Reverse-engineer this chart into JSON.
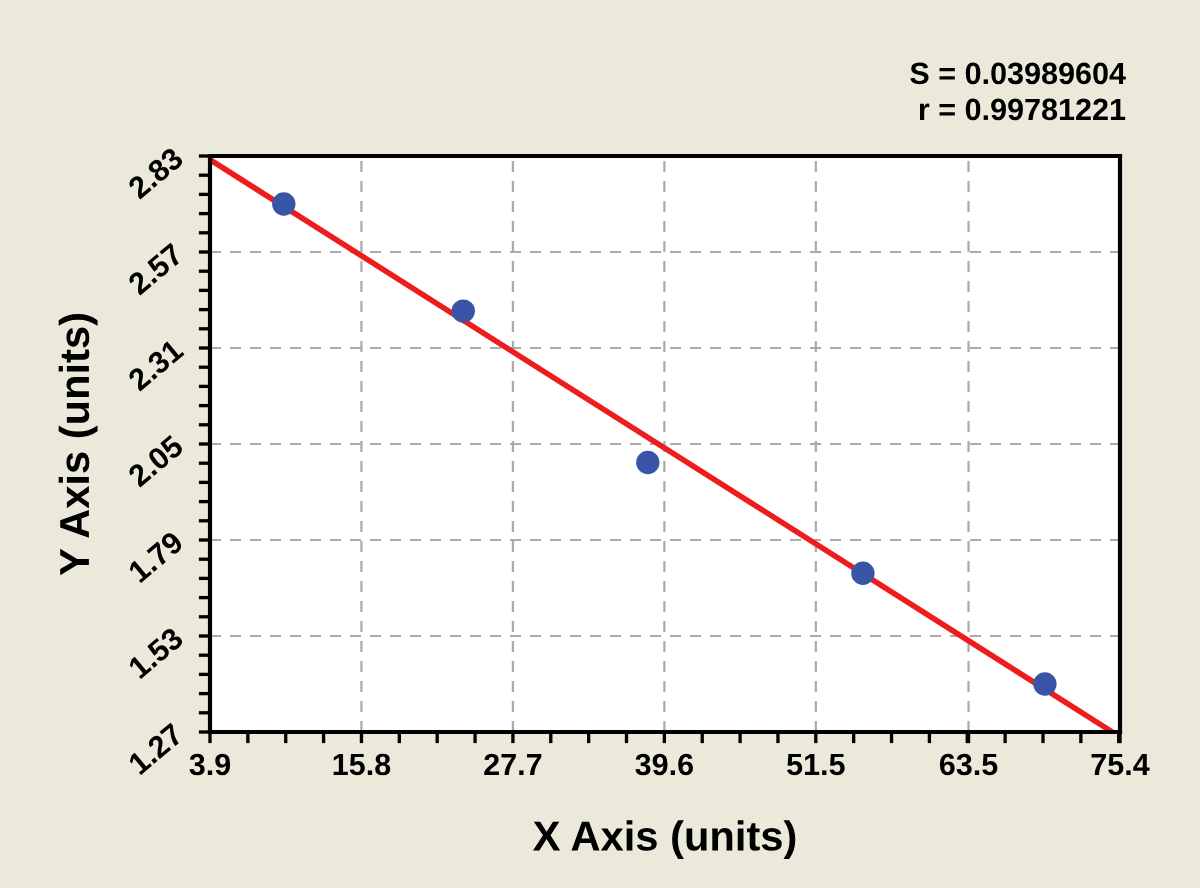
{
  "chart_data": {
    "type": "scatter",
    "xlabel": "X Axis (units)",
    "ylabel": "Y Axis (units)",
    "annotations": [
      "S = 0.03989604",
      "r = 0.99781221"
    ],
    "series": [
      {
        "color": "#3a55a8",
        "marker": "circle",
        "x": [
          9.7,
          23.8,
          38.3,
          55.2,
          69.5
        ],
        "values": [
          2.7,
          2.41,
          2.0,
          1.7,
          1.4
        ]
      },
      {
        "type": "line",
        "color": "#ee1c1c",
        "line_style": "solid",
        "x": [
          3.9,
          74.8
        ],
        "values": [
          2.82,
          1.27
        ]
      }
    ],
    "xlim": [
      3.9,
      75.4
    ],
    "xticks": [
      3.9,
      15.8,
      27.7,
      39.6,
      51.5,
      63.5,
      75.4
    ],
    "ylim": [
      1.27,
      2.83
    ],
    "yticks": [
      1.27,
      1.53,
      1.79,
      2.05,
      2.31,
      2.57,
      2.83
    ],
    "grid": true,
    "legend": false
  }
}
